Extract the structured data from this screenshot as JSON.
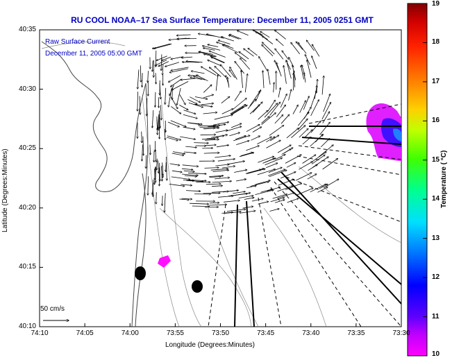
{
  "title": "RU COOL  NOAA–17  Sea Surface Temperature:  December 11, 2005 0251 GMT",
  "overlay": {
    "line1": "Raw Surface Current",
    "line2": "December 11, 2005 05:00 GMT"
  },
  "scale_label": "50 cm/s",
  "colorbar": {
    "label": "Temperature ( °C)",
    "min": 10,
    "max": 19,
    "ticks": [
      "10",
      "11",
      "12",
      "13",
      "14",
      "15",
      "16",
      "17",
      "18",
      "19"
    ],
    "colors": [
      "#ff00ff",
      "#8000ff",
      "#0000ff",
      "#0080ff",
      "#00ffff",
      "#00ff80",
      "#80ff00",
      "#ffff00",
      "#ff8000",
      "#ff0000",
      "#800000"
    ]
  },
  "chart_data": {
    "type": "map",
    "title": "RU COOL  NOAA–17  Sea Surface Temperature:  December 11, 2005 0251 GMT",
    "xlabel": "Longitude (Degrees:Minutes)",
    "ylabel": "Latitude (Degrees:Minutes)",
    "x_ticks": [
      "74:10",
      "74:05",
      "74:00",
      "73:55",
      "73:50",
      "73:45",
      "73:40",
      "73:35",
      "73:30"
    ],
    "y_ticks": [
      "40:35",
      "40:30",
      "40:25",
      "40:20",
      "40:15",
      "40:10"
    ],
    "xlim": [
      -74.1667,
      -73.5
    ],
    "ylim": [
      40.1667,
      40.5833
    ],
    "current_field": {
      "center_lon": -73.78,
      "center_lat": 40.46,
      "description": "dense surface current vectors over the Hudson River outflow, Lower New York Bay"
    },
    "sst_patches": [
      {
        "color": "magenta/blue",
        "lon": -73.53,
        "lat": 40.455,
        "temp_min": 10,
        "temp_max": 11.5
      },
      {
        "color": "magenta",
        "lon": -73.94,
        "lat": 40.27,
        "temp": 10
      }
    ],
    "cloud_masks": [
      {
        "lon": -73.97,
        "lat": 40.25
      },
      {
        "lon": -73.87,
        "lat": 40.237
      }
    ]
  }
}
